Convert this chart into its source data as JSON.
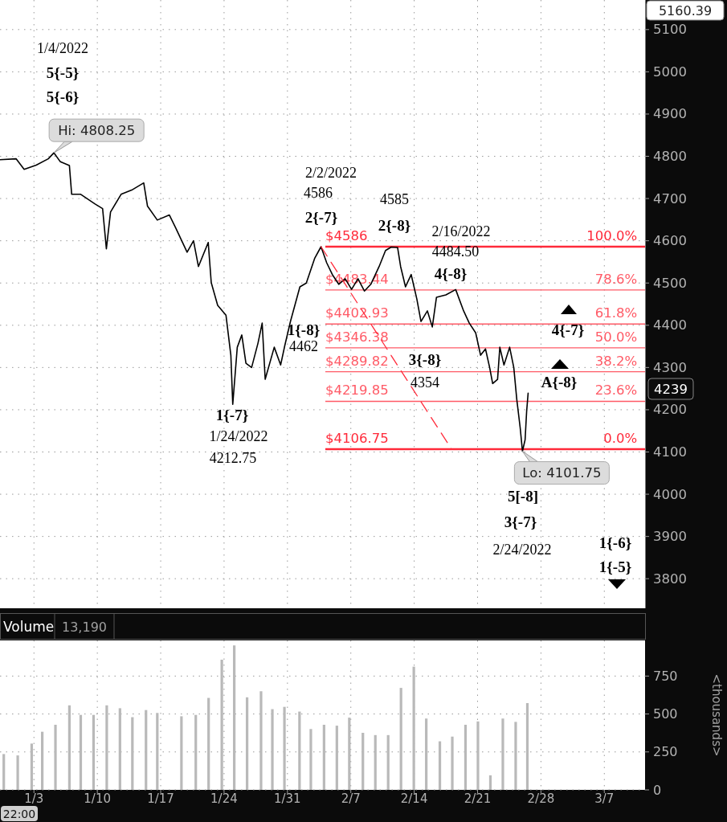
{
  "chart_data": [
    {
      "type": "line",
      "xlim": [
        "2021-12-30T06:00",
        "2022-03-11T12:00"
      ],
      "ylim": [
        3730,
        5170
      ],
      "yticks": [
        3800,
        3900,
        4000,
        4100,
        4200,
        4300,
        4400,
        4500,
        4600,
        4700,
        4800,
        4900,
        5000,
        5100
      ],
      "xticks": [
        {
          "value": "2022-01-03",
          "label": null
        },
        {
          "value": "2022-01-10",
          "label": null
        },
        {
          "value": "2022-01-17",
          "label": null
        },
        {
          "value": "2022-01-24",
          "label": null
        },
        {
          "value": "2022-01-31",
          "label": null
        },
        {
          "value": "2022-02-07",
          "label": null
        },
        {
          "value": "2022-02-14",
          "label": null
        },
        {
          "value": "2022-02-21",
          "label": null
        },
        {
          "value": "2022-02-28",
          "label": null
        },
        {
          "value": "2022-03-07",
          "label": null
        }
      ],
      "tick_labels": "y",
      "grid": true,
      "marker": "none",
      "series": [
        {
          "color": "#000000",
          "x": [
            "2021-12-30T06:00",
            "2022-01-01T01:00",
            "2022-01-01T22:00",
            "2022-01-03T06:00",
            "2022-01-04T14:00",
            "2022-01-05T05:00",
            "2022-01-05T22:00",
            "2022-01-06T22:00",
            "2022-01-07T04:00",
            "2022-01-08T04:00",
            "2022-01-09T18:00",
            "2022-01-10T14:00",
            "2022-01-11T00:00",
            "2022-01-11T11:00",
            "2022-01-12T15:00",
            "2022-01-13T19:00",
            "2022-01-15T03:00",
            "2022-01-15T13:00",
            "2022-01-16T15:00",
            "2022-01-17T23:00",
            "2022-01-18T16:00",
            "2022-01-19T22:00",
            "2022-01-20T15:00",
            "2022-01-21T04:00",
            "2022-01-22T06:00",
            "2022-01-22T14:00",
            "2022-01-23T07:00",
            "2022-01-24T05:00",
            "2022-01-24T18:00",
            "2022-01-24T23:00",
            "2022-01-25T11:00",
            "2022-01-25T23:00",
            "2022-01-26T10:00",
            "2022-01-27T01:00",
            "2022-01-27T18:00",
            "2022-01-28T05:00",
            "2022-01-28T13:00",
            "2022-01-29T13:00",
            "2022-01-30T06:00",
            "2022-01-30T17:00",
            "2022-01-31T08:00",
            "2022-02-01T09:00",
            "2022-02-02T02:00",
            "2022-02-03T00:00",
            "2022-02-03T17:00",
            "2022-02-04T08:00",
            "2022-02-04T23:00",
            "2022-02-05T16:00",
            "2022-02-06T09:00",
            "2022-02-07T02:00",
            "2022-02-07T19:00",
            "2022-02-08T12:00",
            "2022-02-09T05:00",
            "2022-02-10T03:00",
            "2022-02-10T20:00",
            "2022-02-11T11:00",
            "2022-02-12T04:00",
            "2022-02-12T12:00",
            "2022-02-13T01:00",
            "2022-02-13T16:00",
            "2022-02-14T07:00",
            "2022-02-14T18:00",
            "2022-02-15T11:00",
            "2022-02-16T00:00",
            "2022-02-16T11:00",
            "2022-02-17T12:00",
            "2022-02-18T14:00",
            "2022-02-19T11:00",
            "2022-02-20T02:00",
            "2022-02-20T19:00",
            "2022-02-21T08:00",
            "2022-02-21T21:00",
            "2022-02-22T08:00",
            "2022-02-22T16:00",
            "2022-02-23T05:00",
            "2022-02-23T11:00",
            "2022-02-23T22:00",
            "2022-02-24T13:00",
            "2022-02-25T00:00",
            "2022-02-25T08:00",
            "2022-02-25T17:00",
            "2022-02-25T23:00",
            "2022-02-26T06:00",
            "2022-02-26T10:00",
            "2022-02-26T14:00"
          ],
          "values": [
            4792,
            4794,
            4769,
            4779,
            4794,
            4808.25,
            4787,
            4778,
            4710,
            4710,
            4687,
            4676,
            4581,
            4668,
            4710,
            4720,
            4737,
            4682,
            4649,
            4661,
            4630,
            4573,
            4600,
            4539,
            4596,
            4501,
            4447,
            4424,
            4329,
            4212.75,
            4348,
            4377,
            4310,
            4300,
            4358,
            4405,
            4272,
            4348,
            4306,
            4352,
            4409,
            4491,
            4500,
            4558,
            4586,
            4548,
            4520,
            4497,
            4510,
            4485,
            4510,
            4481,
            4497,
            4539,
            4577,
            4585,
            4584,
            4539,
            4491,
            4520,
            4462,
            4409,
            4434,
            4396,
            4466,
            4472,
            4484.5,
            4434,
            4405,
            4382,
            4329,
            4344,
            4300,
            4262,
            4272,
            4348,
            4306,
            4348,
            4300,
            4224,
            4157,
            4101.75,
            4129,
            4195,
            4239
          ]
        },
        {
          "type": "line",
          "color": "#ff2a3a",
          "line_style": "dashed",
          "x": [
            "2022-02-03T17:00",
            "2022-02-18T03:00"
          ],
          "values": [
            4586,
            4106.75
          ]
        }
      ],
      "ref_lines": [
        {
          "axis": "y",
          "value": 4586,
          "label": "$4586",
          "color": "#ff2a3a"
        },
        {
          "axis": "y",
          "value": 4483.44,
          "label": "$4483.44",
          "color": "#ff5a66"
        },
        {
          "axis": "y",
          "value": 4402.93,
          "label": "$4402.93",
          "color": "#ff5a66"
        },
        {
          "axis": "y",
          "value": 4346.38,
          "label": "$4346.38",
          "color": "#ff5a66"
        },
        {
          "axis": "y",
          "value": 4289.82,
          "label": "$4289.82",
          "color": "#ff5a66"
        },
        {
          "axis": "y",
          "value": 4219.85,
          "label": "$4219.85",
          "color": "#ff5a66"
        },
        {
          "axis": "y",
          "value": 4106.75,
          "label": "$4106.75",
          "color": "#ff2a3a"
        }
      ],
      "annotations": [
        "1/4/2022",
        "5{-5}",
        "5{-6}",
        {
          "text": "Hi: 4808.25",
          "x": "2022-01-05T05:00",
          "y": 4808.25
        },
        "2/2/2022",
        "4586",
        "2{-7}",
        "4585",
        "2{-8}",
        "2/16/2022",
        "4484.50",
        "4{-8}",
        "1{-8}",
        "4462",
        "3{-8}",
        "4354",
        "4{-7}",
        "A{-8}",
        "1{-7}",
        "1/24/2022",
        "4212.75",
        {
          "text": "Lo: 4101.75",
          "x": "2022-02-25T23:00",
          "y": 4101.75
        },
        "5[-8]",
        "3{-7}",
        "2/24/2022",
        "1{-6}",
        "1{-5}",
        {
          "text": "100.0%",
          "x": "2022-03-10T15:00",
          "y": 4586
        },
        {
          "text": "78.6%",
          "x": "2022-03-10T15:00",
          "y": 4483.44
        },
        {
          "text": "61.8%",
          "x": "2022-03-10T15:00",
          "y": 4402.93
        },
        {
          "text": "50.0%",
          "x": "2022-03-10T15:00",
          "y": 4346.38
        },
        {
          "text": "38.2%",
          "x": "2022-03-10T15:00",
          "y": 4289.82
        },
        {
          "text": "23.6%",
          "x": "2022-03-10T15:00",
          "y": 4219.85
        },
        {
          "text": "0.0%",
          "x": "2022-03-10T15:00",
          "y": 4106.75
        },
        "4239",
        "5160.39"
      ]
    },
    {
      "type": "bar",
      "title": "Volume",
      "ylabel": "<thousands>",
      "color": "#b9b9b9",
      "grid": true,
      "xlim": [
        "2021-12-30T06:00",
        "2022-03-11T12:00"
      ],
      "ylim": [
        0,
        985
      ],
      "yticks": [
        0,
        250,
        500,
        750
      ],
      "xticks": [
        {
          "value": "2022-01-03",
          "label": "1/3"
        },
        {
          "value": "2022-01-10",
          "label": "1/10"
        },
        {
          "value": "2022-01-17",
          "label": "1/17"
        },
        {
          "value": "2022-01-24",
          "label": "1/24"
        },
        {
          "value": "2022-01-31",
          "label": "1/31"
        },
        {
          "value": "2022-02-07",
          "label": "2/7"
        },
        {
          "value": "2022-02-14",
          "label": "2/14"
        },
        {
          "value": "2022-02-21",
          "label": "2/21"
        },
        {
          "value": "2022-02-28",
          "label": "2/28"
        },
        {
          "value": "2022-03-07",
          "label": "3/7"
        }
      ],
      "x": [
        "2021-12-30T16:00",
        "2022-01-01T05:00",
        "2022-01-02T18:00",
        "2022-01-03T22:00",
        "2022-01-05T09:00",
        "2022-01-06T22:00",
        "2022-01-08T04:00",
        "2022-01-09T14:00",
        "2022-01-11T01:00",
        "2022-01-12T12:00",
        "2022-01-13T21:00",
        "2022-01-15T09:00",
        "2022-01-16T15:00",
        "2022-01-19T07:00",
        "2022-01-20T21:00",
        "2022-01-22T07:00",
        "2022-01-23T18:00",
        "2022-01-25T03:00",
        "2022-01-26T13:00",
        "2022-01-28T02:00",
        "2022-01-29T08:00",
        "2022-01-30T16:00",
        "2022-02-01T08:00",
        "2022-02-02T14:00",
        "2022-02-04T01:00",
        "2022-02-05T11:00",
        "2022-02-06T20:00",
        "2022-02-08T08:00",
        "2022-02-09T17:00",
        "2022-02-11T03:00",
        "2022-02-12T13:00",
        "2022-02-13T23:00",
        "2022-02-15T08:00",
        "2022-02-16T20:00",
        "2022-02-18T05:00",
        "2022-02-19T16:00",
        "2022-02-21T01:00",
        "2022-02-22T10:00",
        "2022-02-23T19:00",
        "2022-02-25T05:00",
        "2022-02-26T12:00"
      ],
      "values": [
        236,
        227,
        305,
        383,
        429,
        557,
        494,
        494,
        557,
        538,
        479,
        526,
        507,
        485,
        494,
        606,
        858,
        952,
        610,
        650,
        532,
        547,
        516,
        401,
        429,
        423,
        476,
        376,
        361,
        361,
        672,
        812,
        470,
        320,
        351,
        429,
        451,
        96,
        470,
        448,
        572
      ],
      "annotations": [
        "13,190",
        "22:00"
      ]
    }
  ]
}
